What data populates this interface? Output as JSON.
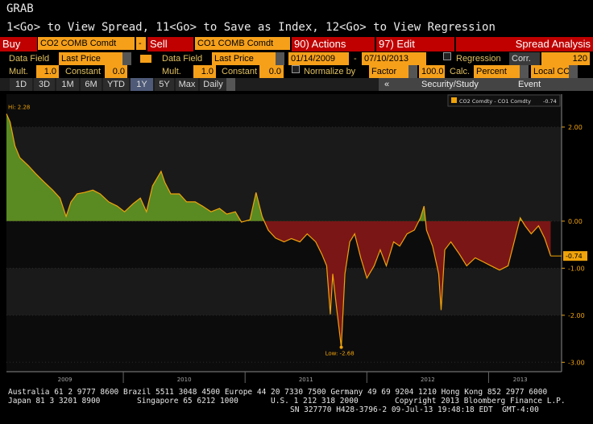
{
  "ui": {
    "screen": "GRAB",
    "hint": "1<Go> to View Spread, 11<Go> to Save as Index, 12<Go> to View Regression",
    "row1": [
      "Buy",
      "CO2 COMB Comdt",
      "-",
      "Sell",
      "CO1 COMB Comdt",
      "90) Actions",
      "97) Edit",
      "Spread Analysis"
    ],
    "row2": [
      "Data Field",
      "Last Price",
      "Data Field",
      "Last Price",
      "01/14/2009",
      "-",
      "07/10/2013",
      "Regression",
      "Corr.",
      "120"
    ],
    "row3": [
      "Mult.",
      "1.0",
      "Constant",
      "0.0",
      "Mult.",
      "1.0",
      "Constant",
      "0.0",
      "Normalize by",
      "Factor",
      "100.0",
      "Calc.",
      "Percent",
      "Local CCY"
    ],
    "tabs": [
      "1D",
      "3D",
      "1M",
      "6M",
      "YTD",
      "1Y",
      "5Y",
      "Max",
      "Daily"
    ],
    "tools": [
      "«",
      "Security/Study",
      "Event"
    ],
    "footer": [
      "Australia 61 2 9777 8600 Brazil 5511 3048 4500 Europe 44 20 7330 7500 Germany 49 69 9204 1210 Hong Kong 852 2977 6000",
      "Japan 81 3 3201 8900",
      "Singapore 65 6212 1000",
      "U.S. 1 212 318 2000",
      "Copyright 2013 Bloomberg Finance L.P.",
      "SN 327770 H428-3796-2 09-Jul-13 19:48:18 EDT  GMT-4:00"
    ]
  },
  "chart_data": {
    "type": "line",
    "series": [
      {
        "name": "CO2 Comdty - CO1 Comdty",
        "color": "#f0a30a",
        "x": [
          2009.04,
          2009.07,
          2009.11,
          2009.15,
          2009.22,
          2009.28,
          2009.35,
          2009.42,
          2009.48,
          2009.53,
          2009.57,
          2009.62,
          2009.68,
          2009.75,
          2009.81,
          2009.88,
          2009.95,
          2010.01,
          2010.08,
          2010.14,
          2010.19,
          2010.24,
          2010.31,
          2010.34,
          2010.39,
          2010.46,
          2010.52,
          2010.59,
          2010.65,
          2010.72,
          2010.79,
          2010.85,
          2010.92,
          2010.97,
          2011.04,
          2011.09,
          2011.14,
          2011.19,
          2011.25,
          2011.32,
          2011.38,
          2011.45,
          2011.51,
          2011.58,
          2011.63,
          2011.67,
          2011.7,
          2011.72,
          2011.75,
          2011.79,
          2011.82,
          2011.86,
          2011.9,
          2011.95,
          2012.0,
          2012.06,
          2012.11,
          2012.16,
          2012.22,
          2012.27,
          2012.33,
          2012.39,
          2012.44,
          2012.47,
          2012.49,
          2012.54,
          2012.59,
          2012.61,
          2012.64,
          2012.69,
          2012.76,
          2012.82,
          2012.89,
          2012.96,
          2013.02,
          2013.09,
          2013.16,
          2013.21,
          2013.26,
          2013.3,
          2013.35,
          2013.41,
          2013.46,
          2013.51
        ],
        "values": [
          2.28,
          2.11,
          1.6,
          1.35,
          1.18,
          1.01,
          0.83,
          0.66,
          0.49,
          0.1,
          0.41,
          0.58,
          0.61,
          0.66,
          0.58,
          0.41,
          0.32,
          0.2,
          0.37,
          0.49,
          0.2,
          0.75,
          1.06,
          0.83,
          0.58,
          0.58,
          0.41,
          0.41,
          0.32,
          0.2,
          0.27,
          0.15,
          0.2,
          -0.02,
          0.03,
          0.61,
          0.1,
          -0.19,
          -0.36,
          -0.44,
          -0.37,
          -0.44,
          -0.27,
          -0.44,
          -0.7,
          -0.95,
          -1.98,
          -1.12,
          -1.81,
          -2.68,
          -1.12,
          -0.44,
          -0.27,
          -0.78,
          -1.21,
          -0.95,
          -0.61,
          -0.95,
          -0.44,
          -0.53,
          -0.27,
          -0.19,
          0.07,
          0.32,
          -0.19,
          -0.53,
          -1.12,
          -1.89,
          -0.61,
          -0.44,
          -0.7,
          -0.95,
          -0.78,
          -0.87,
          -0.95,
          -1.04,
          -0.95,
          -0.44,
          0.07,
          -0.1,
          -0.27,
          -0.1,
          -0.36,
          -0.74
        ]
      }
    ],
    "above_color": "#5a8a22",
    "below_color": "#7a1616",
    "annotations": [
      "Hi: 2.28",
      "Low: -2.68"
    ],
    "xlim": [
      2009.04,
      2013.52
    ],
    "xticks": [
      2010,
      2011,
      2012,
      2013
    ],
    "x_labels": [
      "2009",
      "2010",
      "2011",
      "2012",
      "2013"
    ],
    "ylim": [
      -3.2,
      2.7
    ],
    "yticks": [
      {
        "value": 2,
        "label": "2.00"
      },
      {
        "value": 0,
        "label": "0.00"
      },
      {
        "value": -1,
        "label": "-1.00"
      },
      {
        "value": -2,
        "label": "-2.00"
      },
      {
        "value": -3,
        "label": "-3.00"
      }
    ]
  }
}
